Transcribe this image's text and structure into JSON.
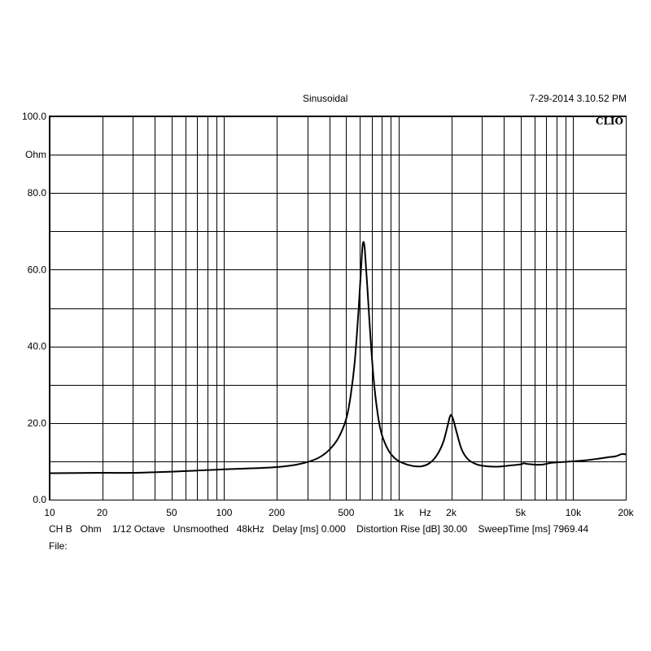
{
  "header": {
    "title": "Sinusoidal",
    "timestamp": "7-29-2014 3.10.52 PM"
  },
  "brand": "CLIO",
  "footer": {
    "line1": "CH B   Ohm    1/12 Octave   Unsmoothed   48kHz   Delay [ms] 0.000    Distortion Rise [dB] 30.00    SweepTime [ms] 7969.44",
    "line2": "File:"
  },
  "chart_data": {
    "type": "line",
    "xscale": "log",
    "xlim": [
      10,
      20000
    ],
    "ylim": [
      0,
      100
    ],
    "ylabel": "Ohm",
    "xlabel": "Hz",
    "grid": true,
    "y_tick_labels": [
      {
        "value": 100,
        "label": "100.0"
      },
      {
        "value": 80,
        "label": "80.0"
      },
      {
        "value": 60,
        "label": "60.0"
      },
      {
        "value": 40,
        "label": "40.0"
      },
      {
        "value": 20,
        "label": "20.0"
      },
      {
        "value": 0,
        "label": "0.0"
      }
    ],
    "y_grid": [
      0,
      10,
      20,
      30,
      40,
      50,
      60,
      70,
      80,
      90,
      100
    ],
    "x_tick_labels": [
      {
        "value": 10,
        "label": "10"
      },
      {
        "value": 20,
        "label": "20"
      },
      {
        "value": 50,
        "label": "50"
      },
      {
        "value": 100,
        "label": "100"
      },
      {
        "value": 200,
        "label": "200"
      },
      {
        "value": 500,
        "label": "500"
      },
      {
        "value": 1000,
        "label": "1k"
      },
      {
        "value": 2000,
        "label": "2k"
      },
      {
        "value": 5000,
        "label": "5k"
      },
      {
        "value": 10000,
        "label": "10k"
      },
      {
        "value": 20000,
        "label": "20k"
      }
    ],
    "x_grid": [
      10,
      20,
      30,
      40,
      50,
      60,
      70,
      80,
      90,
      100,
      200,
      300,
      400,
      500,
      600,
      700,
      800,
      900,
      1000,
      2000,
      3000,
      4000,
      5000,
      6000,
      7000,
      8000,
      9000,
      10000,
      20000
    ],
    "series": [
      {
        "color": "#000000",
        "points": [
          [
            10,
            6.9
          ],
          [
            20,
            7.0
          ],
          [
            30,
            7.0
          ],
          [
            50,
            7.3
          ],
          [
            70,
            7.6
          ],
          [
            100,
            7.9
          ],
          [
            150,
            8.2
          ],
          [
            200,
            8.5
          ],
          [
            250,
            9.0
          ],
          [
            300,
            9.8
          ],
          [
            350,
            11.0
          ],
          [
            400,
            13.0
          ],
          [
            450,
            16.0
          ],
          [
            500,
            21.0
          ],
          [
            530,
            27.0
          ],
          [
            560,
            36.0
          ],
          [
            590,
            50.0
          ],
          [
            610,
            61.0
          ],
          [
            620,
            66.0
          ],
          [
            630,
            67.2
          ],
          [
            640,
            65.0
          ],
          [
            660,
            56.0
          ],
          [
            690,
            42.0
          ],
          [
            720,
            31.0
          ],
          [
            760,
            22.0
          ],
          [
            800,
            17.0
          ],
          [
            870,
            13.0
          ],
          [
            950,
            10.8
          ],
          [
            1050,
            9.6
          ],
          [
            1200,
            8.8
          ],
          [
            1350,
            8.7
          ],
          [
            1500,
            9.5
          ],
          [
            1650,
            11.5
          ],
          [
            1800,
            15.0
          ],
          [
            1900,
            19.0
          ],
          [
            1980,
            22.0
          ],
          [
            2050,
            21.0
          ],
          [
            2150,
            17.5
          ],
          [
            2300,
            13.0
          ],
          [
            2500,
            10.5
          ],
          [
            2800,
            9.2
          ],
          [
            3200,
            8.7
          ],
          [
            3700,
            8.6
          ],
          [
            4300,
            8.9
          ],
          [
            5000,
            9.2
          ],
          [
            5200,
            9.5
          ],
          [
            5500,
            9.3
          ],
          [
            6500,
            9.1
          ],
          [
            7500,
            9.6
          ],
          [
            8500,
            9.8
          ],
          [
            10000,
            10.0
          ],
          [
            12000,
            10.3
          ],
          [
            14000,
            10.7
          ],
          [
            16000,
            11.1
          ],
          [
            17500,
            11.3
          ],
          [
            19000,
            11.9
          ],
          [
            20000,
            11.8
          ]
        ]
      }
    ]
  }
}
